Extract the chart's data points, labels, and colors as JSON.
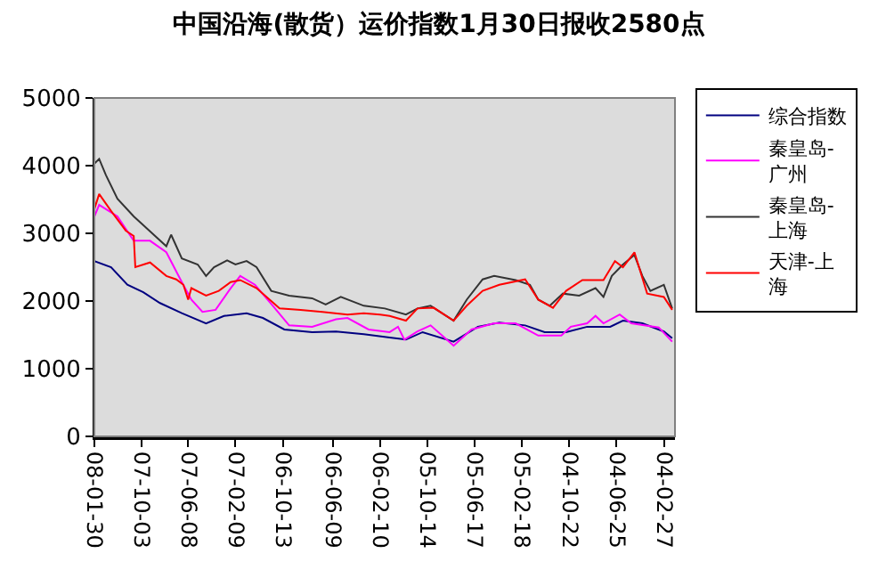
{
  "chart_data": {
    "type": "line",
    "title": "中国沿海(散货）运价指数1月30日报收2580点",
    "xlim": [
      "2008-01-30",
      "2004-01-30"
    ],
    "xticks": [
      {
        "value": "2008-01-30",
        "label": "08-01-30"
      },
      {
        "value": "2007-10-03",
        "label": "07-10-03"
      },
      {
        "value": "2007-06-08",
        "label": "07-06-08"
      },
      {
        "value": "2007-02-09",
        "label": "07-02-09"
      },
      {
        "value": "2006-10-13",
        "label": "06-10-13"
      },
      {
        "value": "2006-06-09",
        "label": "06-06-09"
      },
      {
        "value": "2006-02-10",
        "label": "06-02-10"
      },
      {
        "value": "2005-10-14",
        "label": "05-10-14"
      },
      {
        "value": "2005-06-17",
        "label": "05-06-17"
      },
      {
        "value": "2005-02-18",
        "label": "05-02-18"
      },
      {
        "value": "2004-10-22",
        "label": "04-10-22"
      },
      {
        "value": "2004-06-25",
        "label": "04-06-25"
      },
      {
        "value": "2004-02-27",
        "label": "04-02-27"
      }
    ],
    "ylim": [
      0,
      5000
    ],
    "yticks": [
      0,
      1000,
      2000,
      3000,
      4000,
      5000
    ],
    "grid": false,
    "legend": "right",
    "marker": "none",
    "line_style": "solid",
    "series": [
      {
        "name": "综合指数",
        "color": "#000080",
        "x": [
          "2008-01-30",
          "2007-12-19",
          "2007-11-08",
          "2007-09-29",
          "2007-08-18",
          "2007-06-24",
          "2007-04-24",
          "2007-03-10",
          "2007-01-12",
          "2006-12-02",
          "2006-10-09",
          "2006-07-31",
          "2006-06-01",
          "2006-03-23",
          "2006-01-17",
          "2005-12-07",
          "2005-10-26",
          "2005-08-09",
          "2005-06-09",
          "2005-04-16",
          "2005-02-10",
          "2004-12-23",
          "2004-10-30",
          "2004-09-07",
          "2004-07-11",
          "2004-06-09",
          "2004-04-21",
          "2004-02-27",
          "2004-02-06"
        ],
        "values": [
          2590,
          2500,
          2240,
          2130,
          1970,
          1820,
          1670,
          1780,
          1820,
          1750,
          1580,
          1540,
          1550,
          1510,
          1460,
          1430,
          1540,
          1400,
          1620,
          1680,
          1640,
          1540,
          1540,
          1620,
          1620,
          1710,
          1670,
          1550,
          1450
        ]
      },
      {
        "name": "秦皇岛-广州",
        "color": "#ff00ff",
        "x": [
          "2008-01-30",
          "2008-01-18",
          "2007-12-03",
          "2007-10-23",
          "2007-09-12",
          "2007-08-02",
          "2007-06-24",
          "2007-05-31",
          "2007-05-03",
          "2007-03-31",
          "2007-02-21",
          "2007-01-28",
          "2006-12-22",
          "2006-11-07",
          "2006-09-27",
          "2006-07-31",
          "2006-06-01",
          "2006-05-03",
          "2006-03-11",
          "2006-01-17",
          "2005-12-27",
          "2005-12-11",
          "2005-11-08",
          "2005-10-06",
          "2005-08-09",
          "2005-06-25",
          "2005-04-29",
          "2005-03-06",
          "2005-01-08",
          "2004-11-11",
          "2004-10-18",
          "2004-09-07",
          "2004-08-17",
          "2004-07-28",
          "2004-06-17",
          "2004-05-19",
          "2004-03-11",
          "2004-02-06"
        ],
        "values": [
          3250,
          3420,
          3250,
          2890,
          2890,
          2720,
          2280,
          2020,
          1840,
          1870,
          2190,
          2370,
          2240,
          1930,
          1640,
          1620,
          1730,
          1750,
          1580,
          1540,
          1620,
          1430,
          1550,
          1640,
          1340,
          1580,
          1670,
          1670,
          1490,
          1490,
          1620,
          1670,
          1780,
          1670,
          1800,
          1670,
          1610,
          1400
        ]
      },
      {
        "name": "秦皇岛-上海",
        "color": "#333333",
        "x": [
          "2008-01-30",
          "2008-01-18",
          "2008-01-01",
          "2007-12-03",
          "2007-10-23",
          "2007-09-12",
          "2007-08-02",
          "2007-07-21",
          "2007-06-24",
          "2007-05-15",
          "2007-04-24",
          "2007-04-04",
          "2007-03-02",
          "2007-02-09",
          "2007-01-12",
          "2006-12-18",
          "2006-11-11",
          "2006-09-27",
          "2006-07-31",
          "2006-06-27",
          "2006-05-20",
          "2006-03-23",
          "2006-01-29",
          "2005-12-07",
          "2005-11-08",
          "2005-10-06",
          "2005-08-09",
          "2005-07-07",
          "2005-05-28",
          "2005-04-29",
          "2005-03-06",
          "2005-01-29",
          "2005-01-08",
          "2004-12-10",
          "2004-11-07",
          "2004-09-27",
          "2004-08-17",
          "2004-07-28",
          "2004-07-07",
          "2004-06-09",
          "2004-05-11",
          "2004-04-21",
          "2004-04-01",
          "2004-02-27",
          "2004-02-06"
        ],
        "values": [
          4030,
          4100,
          3860,
          3510,
          3250,
          3030,
          2810,
          2980,
          2630,
          2540,
          2370,
          2500,
          2600,
          2540,
          2590,
          2500,
          2150,
          2080,
          2040,
          1950,
          2060,
          1930,
          1890,
          1800,
          1890,
          1930,
          1710,
          2020,
          2320,
          2370,
          2310,
          2240,
          2020,
          1930,
          2110,
          2080,
          2190,
          2060,
          2370,
          2540,
          2680,
          2370,
          2150,
          2240,
          1890
        ]
      },
      {
        "name": "天津-上海",
        "color": "#ff0000",
        "x": [
          "2008-01-30",
          "2008-01-18",
          "2007-12-19",
          "2007-11-12",
          "2007-10-23",
          "2007-10-19",
          "2007-09-12",
          "2007-08-02",
          "2007-07-08",
          "2007-06-20",
          "2007-06-08",
          "2007-05-31",
          "2007-04-24",
          "2007-03-23",
          "2007-02-21",
          "2007-01-28",
          "2006-12-18",
          "2006-10-21",
          "2006-08-29",
          "2006-07-05",
          "2006-05-03",
          "2006-03-23",
          "2006-02-10",
          "2006-01-17",
          "2005-12-07",
          "2005-11-08",
          "2005-09-28",
          "2005-08-09",
          "2005-07-07",
          "2005-05-28",
          "2005-04-16",
          "2005-02-10",
          "2005-01-08",
          "2004-12-02",
          "2004-10-30",
          "2004-09-19",
          "2004-07-28",
          "2004-06-29",
          "2004-06-09",
          "2004-05-11",
          "2004-04-09",
          "2004-02-27",
          "2004-02-06"
        ],
        "values": [
          3360,
          3580,
          3330,
          3040,
          2960,
          2500,
          2570,
          2370,
          2320,
          2240,
          2020,
          2190,
          2080,
          2150,
          2280,
          2310,
          2190,
          1890,
          1870,
          1840,
          1800,
          1820,
          1800,
          1780,
          1710,
          1890,
          1900,
          1710,
          1930,
          2150,
          2240,
          2320,
          2020,
          1900,
          2150,
          2310,
          2310,
          2590,
          2500,
          2720,
          2110,
          2060,
          1870
        ]
      }
    ]
  }
}
